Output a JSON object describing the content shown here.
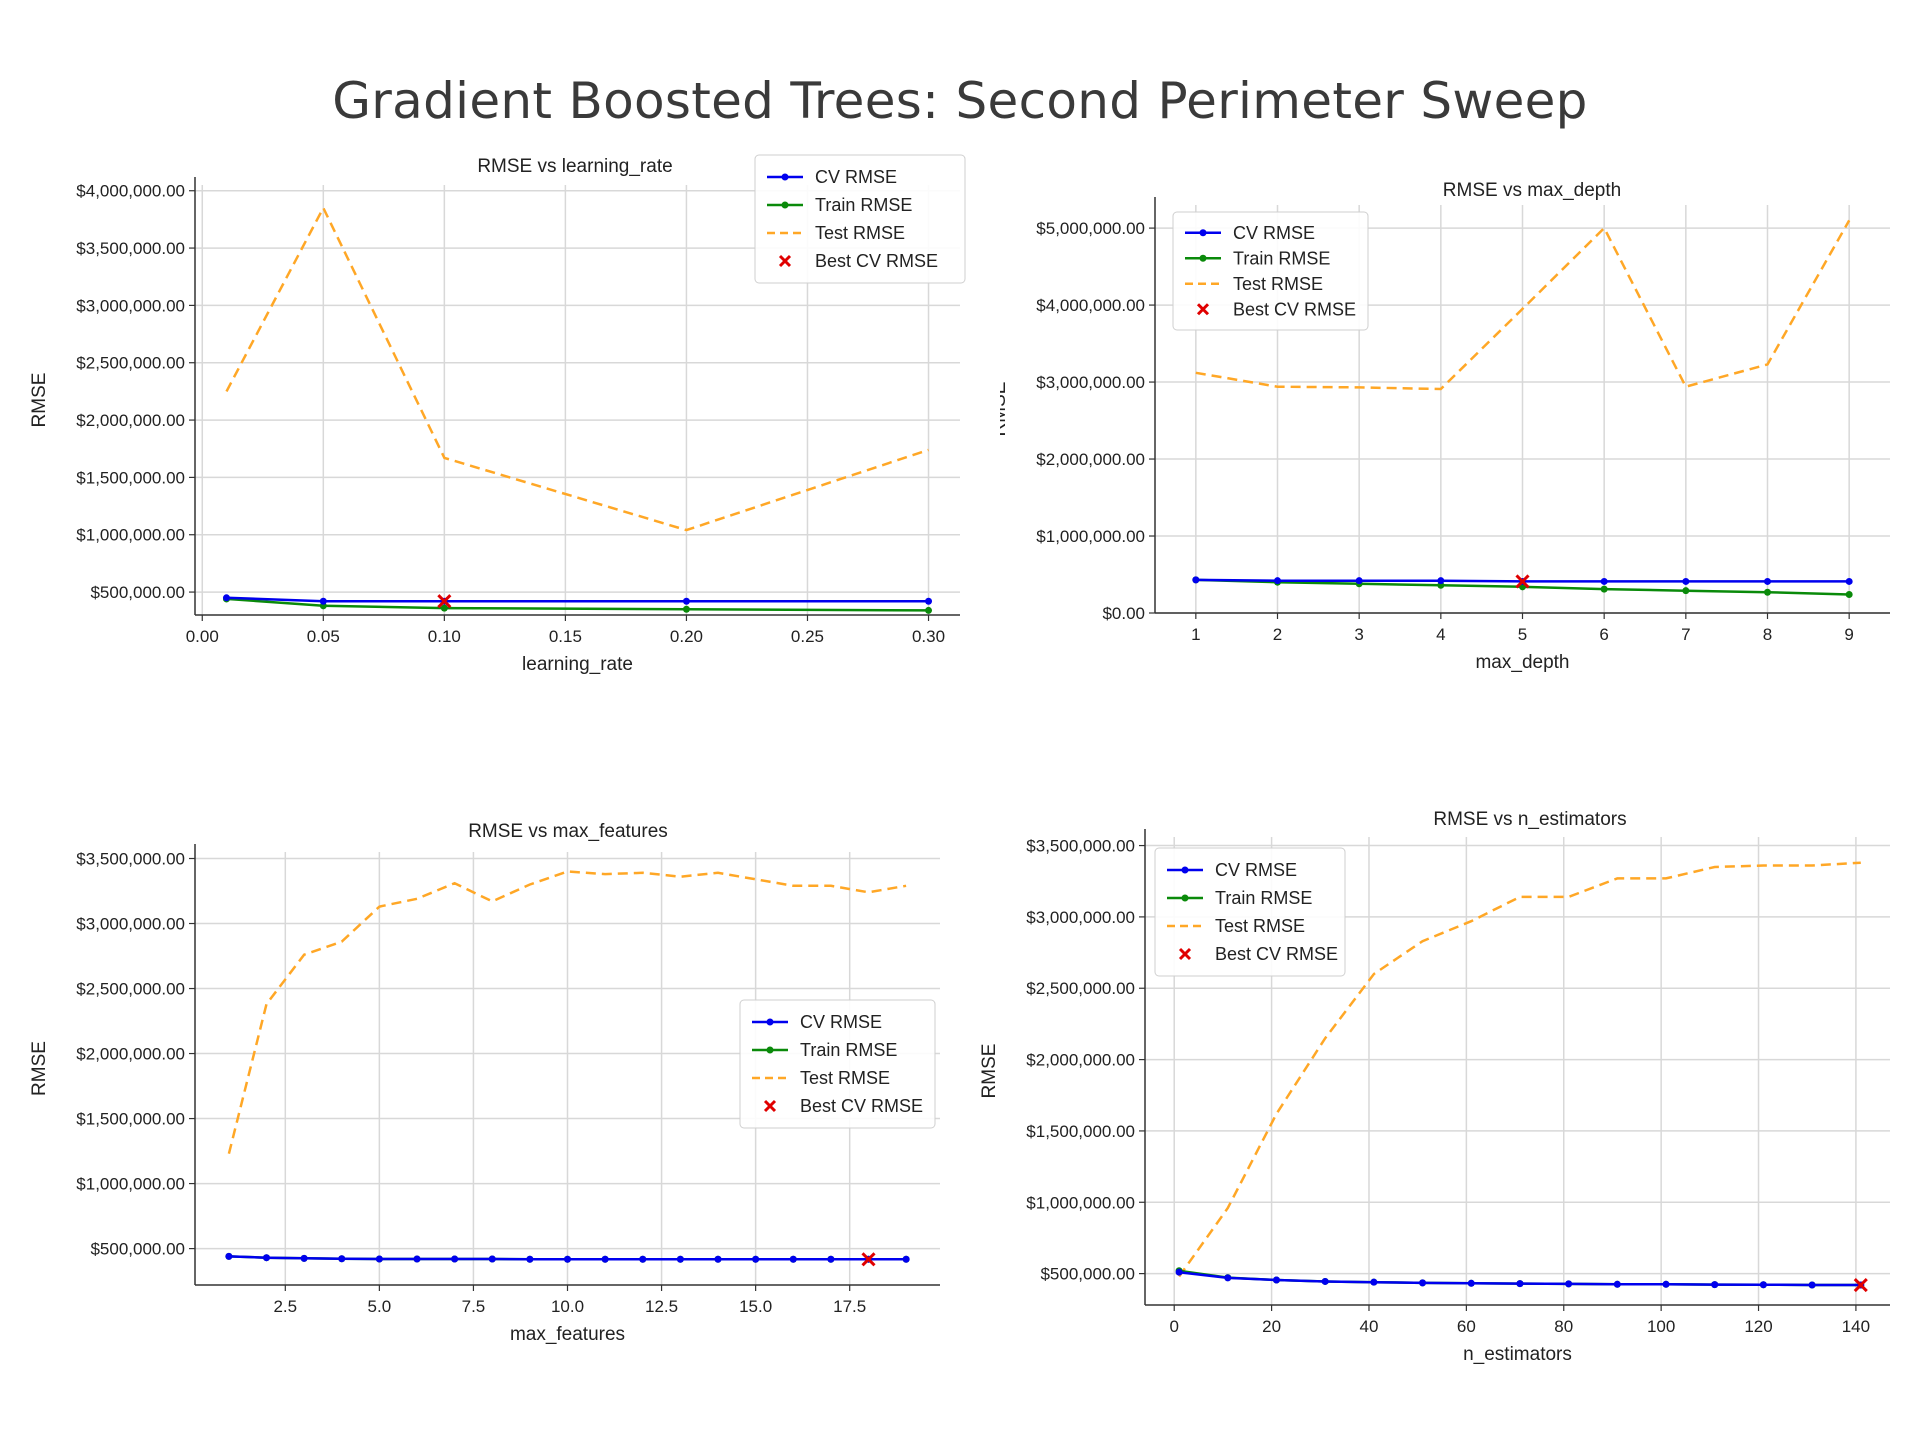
{
  "page_title": "Gradient Boosted Trees: Second Perimeter Sweep",
  "colors": {
    "cv": "#0000ee",
    "train": "#0a8a0a",
    "test": "#ffa726",
    "best": "#e00000",
    "grid": "#d8d8d8",
    "axis": "#333333"
  },
  "chart_data": [
    {
      "type": "line",
      "title": "RMSE vs learning_rate",
      "xlabel": "learning_rate",
      "ylabel": "RMSE",
      "xlim": [
        -0.003,
        0.313
      ],
      "ylim": [
        300000,
        4050000
      ],
      "xticks": [
        0.0,
        0.05,
        0.1,
        0.15,
        0.2,
        0.25,
        0.3
      ],
      "xtick_labels": [
        "0.00",
        "0.05",
        "0.10",
        "0.15",
        "0.20",
        "0.25",
        "0.30"
      ],
      "yticks": [
        500000,
        1000000,
        1500000,
        2000000,
        2500000,
        3000000,
        3500000,
        4000000
      ],
      "ytick_labels": [
        "$500,000.00",
        "$1,000,000.00",
        "$1,500,000.00",
        "$2,000,000.00",
        "$2,500,000.00",
        "$3,000,000.00",
        "$3,500,000.00",
        "$4,000,000.00"
      ],
      "grid": true,
      "legend_position": "top-right",
      "x": [
        0.01,
        0.05,
        0.1,
        0.2,
        0.3
      ],
      "series": [
        {
          "name": "CV RMSE",
          "style": "line-marker",
          "values": [
            450000,
            420000,
            420000,
            420000,
            420000
          ]
        },
        {
          "name": "Train RMSE",
          "style": "line-marker",
          "values": [
            440000,
            380000,
            360000,
            350000,
            340000
          ]
        },
        {
          "name": "Test RMSE",
          "style": "dashed",
          "values": [
            2250000,
            3850000,
            1670000,
            1040000,
            1740000
          ]
        }
      ],
      "best": {
        "name": "Best CV RMSE",
        "x": 0.1,
        "y": 420000
      }
    },
    {
      "type": "line",
      "title": "RMSE vs max_depth",
      "xlabel": "max_depth",
      "ylabel": "RMSE",
      "xlim": [
        0.5,
        9.5
      ],
      "ylim": [
        0,
        5300000
      ],
      "xticks": [
        1,
        2,
        3,
        4,
        5,
        6,
        7,
        8,
        9
      ],
      "xtick_labels": [
        "1",
        "2",
        "3",
        "4",
        "5",
        "6",
        "7",
        "8",
        "9"
      ],
      "yticks": [
        0,
        1000000,
        2000000,
        3000000,
        4000000,
        5000000
      ],
      "ytick_labels": [
        "$0.00",
        "$1,000,000.00",
        "$2,000,000.00",
        "$3,000,000.00",
        "$4,000,000.00",
        "$5,000,000.00"
      ],
      "grid": true,
      "legend_position": "top-left",
      "x": [
        1,
        2,
        3,
        4,
        5,
        6,
        7,
        8,
        9
      ],
      "series": [
        {
          "name": "CV RMSE",
          "style": "line-marker",
          "values": [
            430000,
            420000,
            420000,
            420000,
            410000,
            410000,
            410000,
            410000,
            410000
          ]
        },
        {
          "name": "Train RMSE",
          "style": "line-marker",
          "values": [
            430000,
            400000,
            380000,
            360000,
            340000,
            310000,
            290000,
            270000,
            240000
          ]
        },
        {
          "name": "Test RMSE",
          "style": "dashed",
          "values": [
            3120000,
            2940000,
            2930000,
            2910000,
            3950000,
            5000000,
            2940000,
            3230000,
            5100000
          ]
        }
      ],
      "best": {
        "name": "Best CV RMSE",
        "x": 5,
        "y": 410000
      }
    },
    {
      "type": "line",
      "title": "RMSE vs max_features",
      "xlabel": "max_features",
      "ylabel": "RMSE",
      "xlim": [
        0.1,
        19.9
      ],
      "ylim": [
        220000,
        3550000
      ],
      "xticks": [
        2.5,
        5.0,
        7.5,
        10.0,
        12.5,
        15.0,
        17.5
      ],
      "xtick_labels": [
        "2.5",
        "5.0",
        "7.5",
        "10.0",
        "12.5",
        "15.0",
        "17.5"
      ],
      "yticks": [
        500000,
        1000000,
        1500000,
        2000000,
        2500000,
        3000000,
        3500000
      ],
      "ytick_labels": [
        "$500,000.00",
        "$1,000,000.00",
        "$1,500,000.00",
        "$2,000,000.00",
        "$2,500,000.00",
        "$3,000,000.00",
        "$3,500,000.00"
      ],
      "grid": true,
      "legend_position": "center-right",
      "x": [
        1,
        2,
        3,
        4,
        5,
        6,
        7,
        8,
        9,
        10,
        11,
        12,
        13,
        14,
        15,
        16,
        17,
        18,
        19
      ],
      "series": [
        {
          "name": "CV RMSE",
          "style": "line-marker",
          "values": [
            440000,
            430000,
            425000,
            422000,
            420000,
            420000,
            420000,
            420000,
            418000,
            418000,
            418000,
            418000,
            418000,
            418000,
            418000,
            418000,
            418000,
            418000,
            418000
          ]
        },
        {
          "name": "Train RMSE",
          "style": "line-marker",
          "values": [
            440000,
            430000,
            425000,
            422000,
            420000,
            420000,
            420000,
            420000,
            418000,
            418000,
            418000,
            418000,
            418000,
            418000,
            418000,
            418000,
            418000,
            418000,
            418000
          ]
        },
        {
          "name": "Test RMSE",
          "style": "dashed",
          "values": [
            1230000,
            2380000,
            2760000,
            2860000,
            3130000,
            3190000,
            3310000,
            3170000,
            3300000,
            3400000,
            3380000,
            3390000,
            3360000,
            3390000,
            3340000,
            3290000,
            3290000,
            3240000,
            3290000
          ]
        }
      ],
      "best": {
        "name": "Best CV RMSE",
        "x": 18,
        "y": 418000
      }
    },
    {
      "type": "line",
      "title": "RMSE vs n_estimators",
      "xlabel": "n_estimators",
      "ylabel": "RMSE",
      "xlim": [
        -6,
        147
      ],
      "ylim": [
        280000,
        3560000
      ],
      "xticks": [
        0,
        20,
        40,
        60,
        80,
        100,
        120,
        140
      ],
      "xtick_labels": [
        "0",
        "20",
        "40",
        "60",
        "80",
        "100",
        "120",
        "140"
      ],
      "yticks": [
        500000,
        1000000,
        1500000,
        2000000,
        2500000,
        3000000,
        3500000
      ],
      "ytick_labels": [
        "$500,000.00",
        "$1,000,000.00",
        "$1,500,000.00",
        "$2,000,000.00",
        "$2,500,000.00",
        "$3,000,000.00",
        "$3,500,000.00"
      ],
      "grid": true,
      "legend_position": "top-left",
      "x": [
        1,
        11,
        21,
        31,
        41,
        51,
        61,
        71,
        81,
        91,
        101,
        111,
        121,
        131,
        141
      ],
      "series": [
        {
          "name": "CV RMSE",
          "style": "line-marker",
          "values": [
            510000,
            470000,
            455000,
            445000,
            440000,
            435000,
            432000,
            430000,
            428000,
            425000,
            425000,
            423000,
            422000,
            420000,
            420000
          ]
        },
        {
          "name": "Train RMSE",
          "style": "line-marker",
          "values": [
            520000,
            472000,
            455000,
            445000,
            440000,
            435000,
            432000,
            430000,
            428000,
            425000,
            425000,
            423000,
            422000,
            420000,
            420000
          ]
        },
        {
          "name": "Test RMSE",
          "style": "dashed",
          "values": [
            480000,
            960000,
            1620000,
            2150000,
            2600000,
            2830000,
            2970000,
            3140000,
            3140000,
            3270000,
            3270000,
            3350000,
            3360000,
            3360000,
            3380000
          ]
        }
      ],
      "best": {
        "name": "Best CV RMSE",
        "x": 141,
        "y": 420000
      }
    }
  ]
}
